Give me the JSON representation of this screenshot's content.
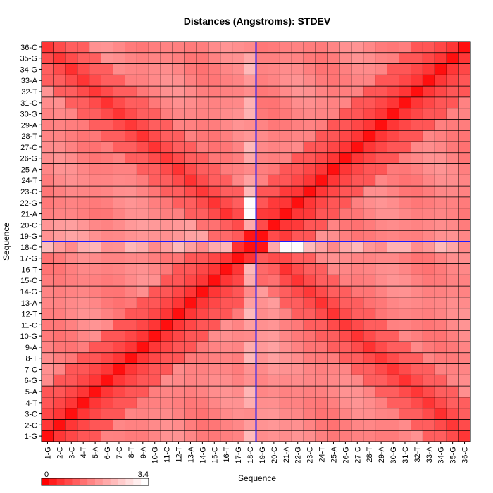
{
  "chart_data": {
    "type": "heatmap",
    "title": "Distances (Angstroms):  STDEV",
    "xlabel": "Sequence",
    "ylabel": "Sequence",
    "categories": [
      "1-G",
      "2-C",
      "3-C",
      "4-T",
      "5-A",
      "6-G",
      "7-C",
      "8-T",
      "9-A",
      "10-G",
      "11-C",
      "12-T",
      "13-A",
      "14-G",
      "15-C",
      "16-T",
      "17-G",
      "18-C",
      "19-G",
      "20-C",
      "21-A",
      "22-G",
      "23-C",
      "24-T",
      "25-A",
      "26-G",
      "27-C",
      "28-T",
      "29-A",
      "30-G",
      "31-C",
      "32-T",
      "33-A",
      "34-G",
      "35-G",
      "36-C"
    ],
    "value_range": [
      0,
      3.4
    ],
    "legend": {
      "min_label": "0",
      "max_label": "3.4",
      "placement": "bottom-left"
    },
    "highlight": {
      "row": "18-C",
      "column": "18-C",
      "color": "#1a1aff"
    },
    "colors": {
      "low": "#ff0000",
      "high": "#ffffff",
      "grid": "#000000"
    },
    "grid": true,
    "note": "Matrix values are estimated from cell color intensity"
  }
}
